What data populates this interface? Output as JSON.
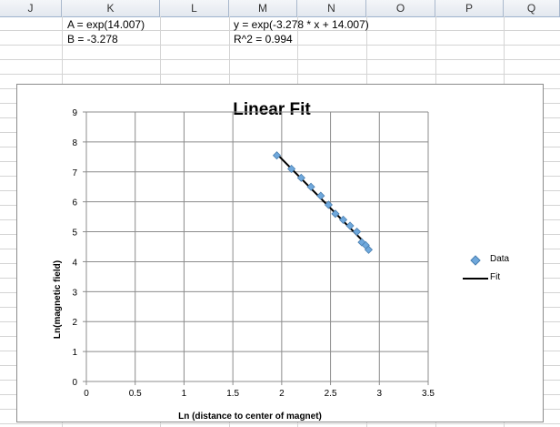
{
  "columns": [
    "J",
    "K",
    "L",
    "M",
    "N",
    "O",
    "P",
    "Q"
  ],
  "cells": {
    "k1": "A = exp(14.007)",
    "k2": "B = -3.278",
    "m1": "y = exp(-3.278 * x + 14.007)",
    "m2": "R^2 = 0.994"
  },
  "chart_data": {
    "type": "scatter",
    "title": "Linear Fit",
    "xlabel": "Ln (distance to center of magnet)",
    "ylabel": "Ln(magnetic field)",
    "xlim": [
      0,
      3.5
    ],
    "ylim": [
      0,
      9
    ],
    "xticks": [
      "0",
      "0.5",
      "1",
      "1.5",
      "2",
      "2.5",
      "3",
      "3.5"
    ],
    "yticks": [
      "0",
      "1",
      "2",
      "3",
      "4",
      "5",
      "6",
      "7",
      "8",
      "9"
    ],
    "grid": true,
    "legend_position": "right",
    "series": [
      {
        "name": "Data",
        "kind": "markers",
        "color": "#6fa8dc",
        "x": [
          1.95,
          2.1,
          2.2,
          2.3,
          2.4,
          2.48,
          2.55,
          2.63,
          2.7,
          2.77,
          2.82,
          2.86,
          2.89
        ],
        "y": [
          7.55,
          7.1,
          6.8,
          6.5,
          6.2,
          5.9,
          5.6,
          5.4,
          5.2,
          5.0,
          4.65,
          4.55,
          4.4
        ]
      },
      {
        "name": "Fit",
        "kind": "line",
        "color": "#000000",
        "x": [
          1.95,
          2.89
        ],
        "y": [
          7.6,
          4.5
        ]
      }
    ]
  }
}
